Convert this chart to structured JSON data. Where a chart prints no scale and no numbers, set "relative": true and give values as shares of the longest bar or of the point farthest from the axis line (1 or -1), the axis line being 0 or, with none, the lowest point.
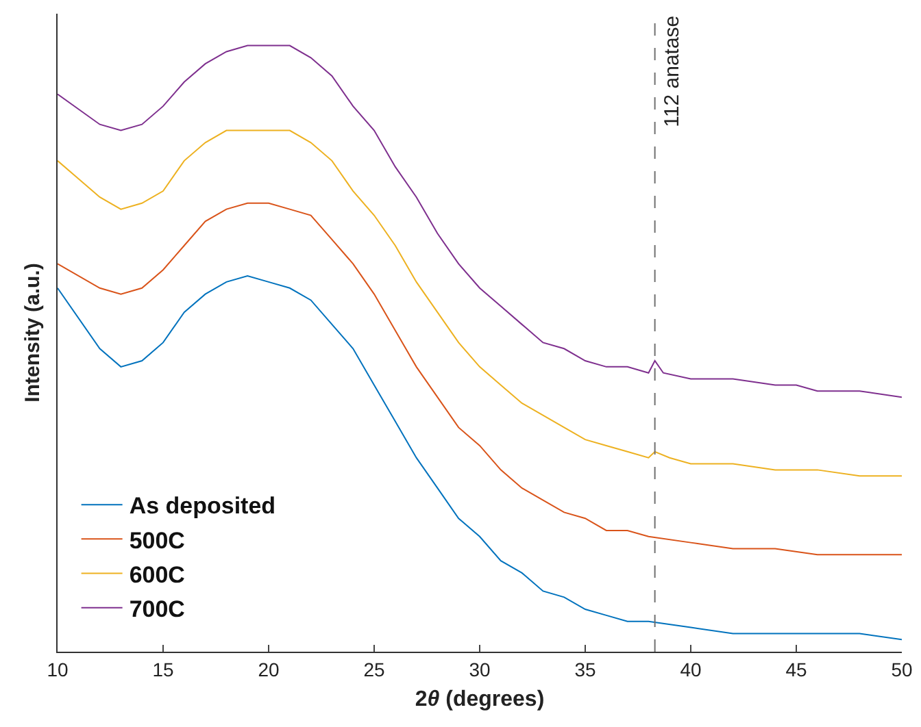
{
  "chart_data": {
    "type": "line",
    "xlabel": "2θ (degrees)",
    "ylabel": "Intensity (a.u.)",
    "relative": true,
    "xlim": [
      10,
      50
    ],
    "xticks": [
      10,
      15,
      20,
      25,
      30,
      35,
      40,
      45,
      50
    ],
    "tick_labels": "x",
    "grid": false,
    "legend": "bottom left",
    "line_style": "solid",
    "marker": "none",
    "series": [
      {
        "name": "As deposited",
        "color": "#0072bd",
        "x": [
          10,
          12,
          13,
          14,
          15,
          16,
          17,
          18,
          19,
          20,
          21,
          22,
          23,
          24,
          25,
          26,
          27,
          28,
          29,
          30,
          31,
          32,
          33,
          34,
          35,
          36,
          37,
          38,
          40,
          42,
          44,
          46,
          48,
          50
        ],
        "values": [
          0.6,
          0.5,
          0.47,
          0.48,
          0.51,
          0.56,
          0.59,
          0.61,
          0.62,
          0.61,
          0.6,
          0.58,
          0.54,
          0.5,
          0.44,
          0.38,
          0.32,
          0.27,
          0.22,
          0.19,
          0.15,
          0.13,
          0.1,
          0.09,
          0.07,
          0.06,
          0.05,
          0.05,
          0.04,
          0.03,
          0.03,
          0.03,
          0.03,
          0.02
        ]
      },
      {
        "name": "500C",
        "color": "#d95319",
        "x": [
          10,
          12,
          13,
          14,
          15,
          16,
          17,
          18,
          19,
          20,
          21,
          22,
          23,
          24,
          25,
          26,
          27,
          28,
          29,
          30,
          31,
          32,
          33,
          34,
          35,
          36,
          37,
          38,
          40,
          42,
          44,
          46,
          48,
          50
        ],
        "values": [
          0.64,
          0.6,
          0.59,
          0.6,
          0.63,
          0.67,
          0.71,
          0.73,
          0.74,
          0.74,
          0.73,
          0.72,
          0.68,
          0.64,
          0.59,
          0.53,
          0.47,
          0.42,
          0.37,
          0.34,
          0.3,
          0.27,
          0.25,
          0.23,
          0.22,
          0.2,
          0.2,
          0.19,
          0.18,
          0.17,
          0.17,
          0.16,
          0.16,
          0.16
        ]
      },
      {
        "name": "600C",
        "color": "#edb120",
        "x": [
          10,
          12,
          13,
          14,
          15,
          16,
          17,
          18,
          19,
          20,
          21,
          22,
          23,
          24,
          25,
          26,
          27,
          28,
          29,
          30,
          31,
          32,
          33,
          34,
          35,
          36,
          37,
          38,
          38.3,
          39,
          40,
          42,
          44,
          46,
          48,
          50
        ],
        "values": [
          0.81,
          0.75,
          0.73,
          0.74,
          0.76,
          0.81,
          0.84,
          0.86,
          0.86,
          0.86,
          0.86,
          0.84,
          0.81,
          0.76,
          0.72,
          0.67,
          0.61,
          0.56,
          0.51,
          0.47,
          0.44,
          0.41,
          0.39,
          0.37,
          0.35,
          0.34,
          0.33,
          0.32,
          0.33,
          0.32,
          0.31,
          0.31,
          0.3,
          0.3,
          0.29,
          0.29
        ]
      },
      {
        "name": "700C",
        "color": "#7e2f8e",
        "x": [
          10,
          12,
          13,
          14,
          15,
          16,
          17,
          18,
          19,
          20,
          21,
          22,
          23,
          24,
          25,
          26,
          27,
          28,
          29,
          30,
          31,
          32,
          33,
          34,
          35,
          36,
          37,
          38,
          38.3,
          38.7,
          40,
          42,
          44,
          45,
          46,
          48,
          50
        ],
        "values": [
          0.92,
          0.87,
          0.86,
          0.87,
          0.9,
          0.94,
          0.97,
          0.99,
          1.0,
          1.0,
          1.0,
          0.98,
          0.95,
          0.9,
          0.86,
          0.8,
          0.75,
          0.69,
          0.64,
          0.6,
          0.57,
          0.54,
          0.51,
          0.5,
          0.48,
          0.47,
          0.47,
          0.46,
          0.48,
          0.46,
          0.45,
          0.45,
          0.44,
          0.44,
          0.43,
          0.43,
          0.42
        ]
      }
    ],
    "ref_lines": [
      {
        "axis": "x",
        "value": 38.3,
        "label": "112 anatase",
        "color": "#707070",
        "line_style": "dashed"
      }
    ]
  }
}
